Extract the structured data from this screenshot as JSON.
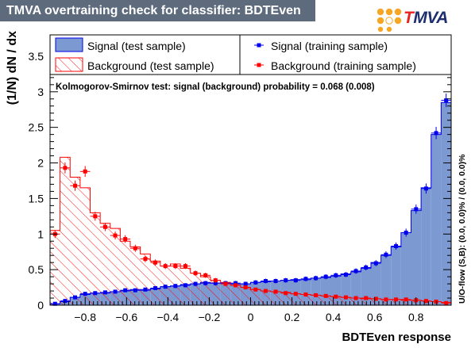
{
  "window": {
    "title": "TMVA overtraining check for classifier: BDTEven"
  },
  "logo": {
    "text_t": "T",
    "text_rest": "MVA",
    "icon": "tmva-dots-logo-icon"
  },
  "colors": {
    "title_bg": "#5d6b7d",
    "signal_fill": "#7d99d1",
    "signal_line": "#0000ee",
    "background_line": "#ff0000",
    "background_point": "#ff0000",
    "logo_orange": "#f7a623",
    "logo_red": "#e8241f",
    "logo_navy": "#1d2f6e"
  },
  "chart_data": {
    "type": "bar",
    "xlabel": "BDTEven response",
    "ylabel": "(1/N) dN / dx",
    "xlim": [
      -0.97,
      0.97
    ],
    "ylim": [
      0,
      3.8
    ],
    "x_ticks": [
      -0.8,
      -0.6,
      -0.4,
      -0.2,
      0,
      0.2,
      0.4,
      0.6,
      0.8
    ],
    "x_tick_labels": [
      "−0.8",
      "−0.6",
      "−0.4",
      "−0.2",
      "0",
      "0.2",
      "0.4",
      "0.6",
      "0.8"
    ],
    "y_ticks": [
      0,
      0.5,
      1,
      1.5,
      2,
      2.5,
      3,
      3.5
    ],
    "y_tick_labels": [
      "0",
      "0.5",
      "1",
      "1.5",
      "2",
      "2.5",
      "3",
      "3.5"
    ],
    "annotation": "Kolmogorov-Smirnov test: signal (background) probability = 0.068 (0.008)",
    "side_label": "U/O-flow (S,B): (0.0, 0.0)% / (0.0, 0.0)%",
    "legend_placement": "top",
    "legend": [
      {
        "label": "Signal (test sample)",
        "kind": "signal-test"
      },
      {
        "label": "Signal (training sample)",
        "kind": "signal-train"
      },
      {
        "label": "Background (test sample)",
        "kind": "background-test"
      },
      {
        "label": "Background (training sample)",
        "kind": "background-train"
      }
    ],
    "bin_edges": [
      -0.97,
      -0.9215,
      -0.873,
      -0.8245,
      -0.776,
      -0.7275,
      -0.679,
      -0.6305,
      -0.582,
      -0.5335,
      -0.485,
      -0.4365,
      -0.388,
      -0.3395,
      -0.291,
      -0.2425,
      -0.194,
      -0.1455,
      -0.097,
      -0.0485,
      0.0,
      0.0485,
      0.097,
      0.1455,
      0.194,
      0.2425,
      0.291,
      0.3395,
      0.388,
      0.4365,
      0.485,
      0.5335,
      0.582,
      0.6305,
      0.679,
      0.7275,
      0.776,
      0.8245,
      0.873,
      0.9215,
      0.97
    ],
    "series": [
      {
        "name": "Signal (test sample)",
        "values": [
          0.02,
          0.05,
          0.11,
          0.15,
          0.17,
          0.17,
          0.19,
          0.2,
          0.22,
          0.21,
          0.23,
          0.26,
          0.27,
          0.29,
          0.3,
          0.32,
          0.31,
          0.31,
          0.3,
          0.3,
          0.32,
          0.33,
          0.34,
          0.35,
          0.36,
          0.36,
          0.38,
          0.39,
          0.41,
          0.44,
          0.47,
          0.52,
          0.6,
          0.7,
          0.82,
          1.02,
          1.33,
          1.65,
          2.4,
          2.85
        ]
      },
      {
        "name": "Signal (training sample)",
        "values": [
          0.02,
          0.06,
          0.11,
          0.16,
          0.17,
          0.18,
          0.19,
          0.21,
          0.21,
          0.22,
          0.24,
          0.26,
          0.27,
          0.28,
          0.3,
          0.31,
          0.31,
          0.31,
          0.31,
          0.3,
          0.32,
          0.34,
          0.34,
          0.35,
          0.35,
          0.37,
          0.38,
          0.4,
          0.42,
          0.43,
          0.48,
          0.53,
          0.59,
          0.71,
          0.83,
          1.02,
          1.35,
          1.64,
          2.42,
          2.88
        ]
      },
      {
        "name": "Background (test sample)",
        "values": [
          1.05,
          2.08,
          1.8,
          1.65,
          1.3,
          1.15,
          1.08,
          0.9,
          0.82,
          0.72,
          0.62,
          0.55,
          0.58,
          0.52,
          0.45,
          0.4,
          0.35,
          0.32,
          0.28,
          0.25,
          0.22,
          0.2,
          0.19,
          0.18,
          0.16,
          0.15,
          0.14,
          0.13,
          0.12,
          0.11,
          0.1,
          0.09,
          0.09,
          0.08,
          0.08,
          0.07,
          0.07,
          0.06,
          0.05,
          0.04
        ]
      },
      {
        "name": "Background (training sample)",
        "values": [
          1.0,
          1.93,
          1.68,
          1.88,
          1.25,
          1.1,
          0.98,
          0.93,
          0.8,
          0.65,
          0.6,
          0.55,
          0.55,
          0.55,
          0.45,
          0.42,
          0.35,
          0.3,
          0.28,
          0.25,
          0.22,
          0.2,
          0.19,
          0.17,
          0.16,
          0.15,
          0.14,
          0.13,
          0.12,
          0.11,
          0.1,
          0.1,
          0.09,
          0.08,
          0.08,
          0.08,
          0.07,
          0.06,
          0.05,
          0.03
        ]
      }
    ]
  }
}
